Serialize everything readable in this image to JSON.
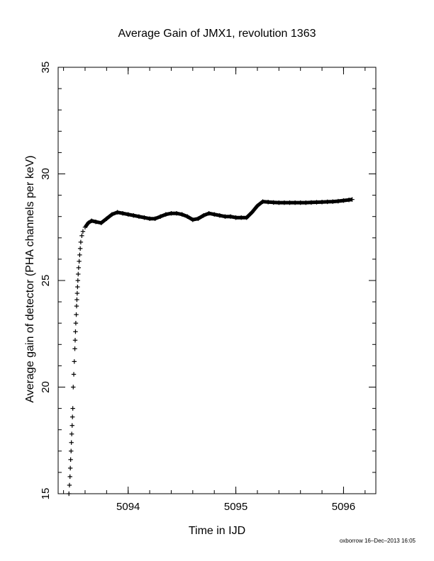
{
  "chart_data": {
    "type": "scatter",
    "title": "Average Gain of JMX1, revolution 1363",
    "xlabel": "Time in IJD",
    "ylabel": "Average gain of detector (PHA channels per keV)",
    "xlim": [
      5093.35,
      5096.3
    ],
    "ylim": [
      15,
      35
    ],
    "x_ticks": [
      5094,
      5095,
      5096
    ],
    "x_minor_step": 0.2,
    "y_ticks": [
      15,
      20,
      25,
      30,
      35
    ],
    "y_minor_step": 1,
    "grid": false,
    "marker": "+",
    "series": [
      {
        "points": [
          [
            5093.45,
            15.0
          ],
          [
            5093.455,
            15.4
          ],
          [
            5093.46,
            15.8
          ],
          [
            5093.463,
            16.2
          ],
          [
            5093.466,
            16.6
          ],
          [
            5093.47,
            17.0
          ],
          [
            5093.473,
            17.4
          ],
          [
            5093.476,
            17.8
          ],
          [
            5093.48,
            18.2
          ],
          [
            5093.483,
            18.6
          ],
          [
            5093.486,
            19.0
          ],
          [
            5093.49,
            20.0
          ],
          [
            5093.495,
            20.6
          ],
          [
            5093.5,
            21.2
          ],
          [
            5093.505,
            21.8
          ],
          [
            5093.508,
            22.2
          ],
          [
            5093.511,
            22.6
          ],
          [
            5093.514,
            23.0
          ],
          [
            5093.518,
            23.4
          ],
          [
            5093.521,
            23.8
          ],
          [
            5093.524,
            24.1
          ],
          [
            5093.527,
            24.4
          ],
          [
            5093.53,
            24.7
          ],
          [
            5093.533,
            25.0
          ],
          [
            5093.536,
            25.3
          ],
          [
            5093.54,
            25.6
          ],
          [
            5093.545,
            25.9
          ],
          [
            5093.55,
            26.2
          ],
          [
            5093.555,
            26.5
          ],
          [
            5093.56,
            26.8
          ],
          [
            5093.57,
            27.1
          ],
          [
            5093.58,
            27.3
          ],
          [
            5093.6,
            27.5
          ],
          [
            5093.63,
            27.7
          ],
          [
            5093.66,
            27.8
          ],
          [
            5093.7,
            27.75
          ],
          [
            5093.75,
            27.7
          ],
          [
            5093.8,
            27.9
          ],
          [
            5093.85,
            28.1
          ],
          [
            5093.9,
            28.2
          ],
          [
            5093.95,
            28.15
          ],
          [
            5094.0,
            28.1
          ],
          [
            5094.05,
            28.05
          ],
          [
            5094.1,
            28.0
          ],
          [
            5094.15,
            27.95
          ],
          [
            5094.2,
            27.9
          ],
          [
            5094.25,
            27.9
          ],
          [
            5094.3,
            28.0
          ],
          [
            5094.35,
            28.1
          ],
          [
            5094.4,
            28.15
          ],
          [
            5094.45,
            28.15
          ],
          [
            5094.5,
            28.1
          ],
          [
            5094.55,
            28.0
          ],
          [
            5094.6,
            27.85
          ],
          [
            5094.65,
            27.9
          ],
          [
            5094.7,
            28.05
          ],
          [
            5094.75,
            28.15
          ],
          [
            5094.8,
            28.1
          ],
          [
            5094.85,
            28.05
          ],
          [
            5094.9,
            28.0
          ],
          [
            5094.95,
            28.0
          ],
          [
            5095.0,
            27.95
          ],
          [
            5095.05,
            27.95
          ],
          [
            5095.1,
            27.95
          ],
          [
            5095.15,
            28.2
          ],
          [
            5095.2,
            28.5
          ],
          [
            5095.25,
            28.7
          ],
          [
            5095.3,
            28.68
          ],
          [
            5095.35,
            28.66
          ],
          [
            5095.4,
            28.65
          ],
          [
            5095.45,
            28.65
          ],
          [
            5095.5,
            28.65
          ],
          [
            5095.55,
            28.65
          ],
          [
            5095.6,
            28.65
          ],
          [
            5095.65,
            28.65
          ],
          [
            5095.7,
            28.66
          ],
          [
            5095.75,
            28.67
          ],
          [
            5095.8,
            28.68
          ],
          [
            5095.85,
            28.69
          ],
          [
            5095.9,
            28.7
          ],
          [
            5095.95,
            28.72
          ],
          [
            5096.0,
            28.75
          ],
          [
            5096.05,
            28.78
          ],
          [
            5096.08,
            28.8
          ]
        ]
      }
    ]
  },
  "footer_text": "oxborrow 16–Dec–2013 16:05"
}
